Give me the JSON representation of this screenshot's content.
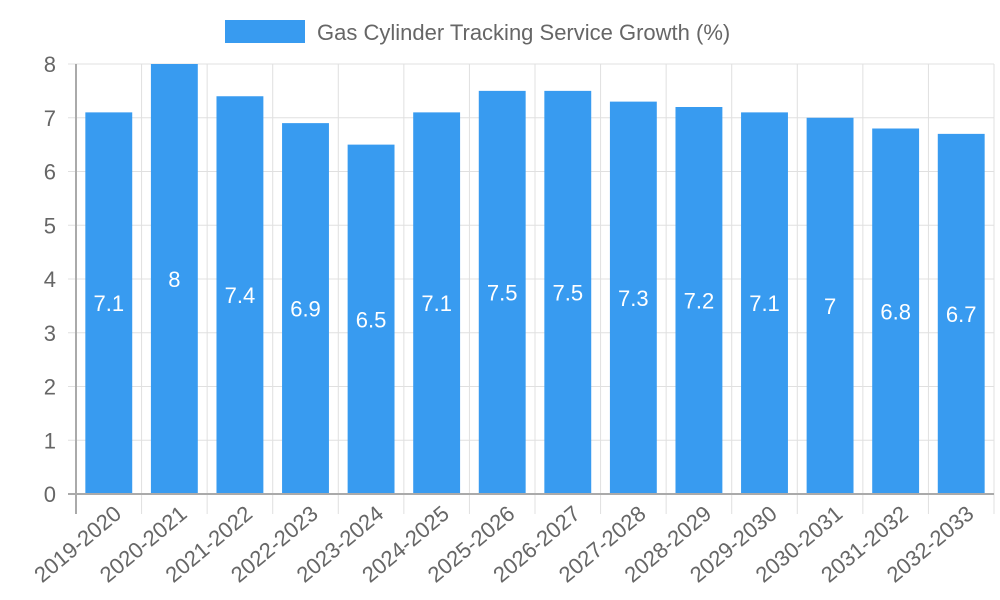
{
  "chart_data": {
    "type": "bar",
    "title": "",
    "legend": {
      "position": "top",
      "entries": [
        {
          "label": "Gas Cylinder Tracking Service Growth (%)",
          "color": "#389BF0"
        }
      ]
    },
    "categories": [
      "2019-2020",
      "2020-2021",
      "2021-2022",
      "2022-2023",
      "2023-2024",
      "2024-2025",
      "2025-2026",
      "2026-2027",
      "2027-2028",
      "2028-2029",
      "2029-2030",
      "2030-2031",
      "2031-2032",
      "2032-2033"
    ],
    "series": [
      {
        "name": "Gas Cylinder Tracking Service Growth (%)",
        "color": "#389BF0",
        "values": [
          7.1,
          8,
          7.4,
          6.9,
          6.5,
          7.1,
          7.5,
          7.5,
          7.3,
          7.2,
          7.1,
          7,
          6.8,
          6.7
        ]
      }
    ],
    "data_labels": [
      "7.1",
      "8",
      "7.4",
      "6.9",
      "6.5",
      "7.1",
      "7.5",
      "7.5",
      "7.3",
      "7.2",
      "7.1",
      "7",
      "6.8",
      "6.7"
    ],
    "xlabel": "",
    "ylabel": "",
    "ylim": [
      0,
      8
    ],
    "yticks": [
      0,
      1,
      2,
      3,
      4,
      5,
      6,
      7,
      8
    ],
    "grid": true,
    "x_tick_rotation": -40
  }
}
